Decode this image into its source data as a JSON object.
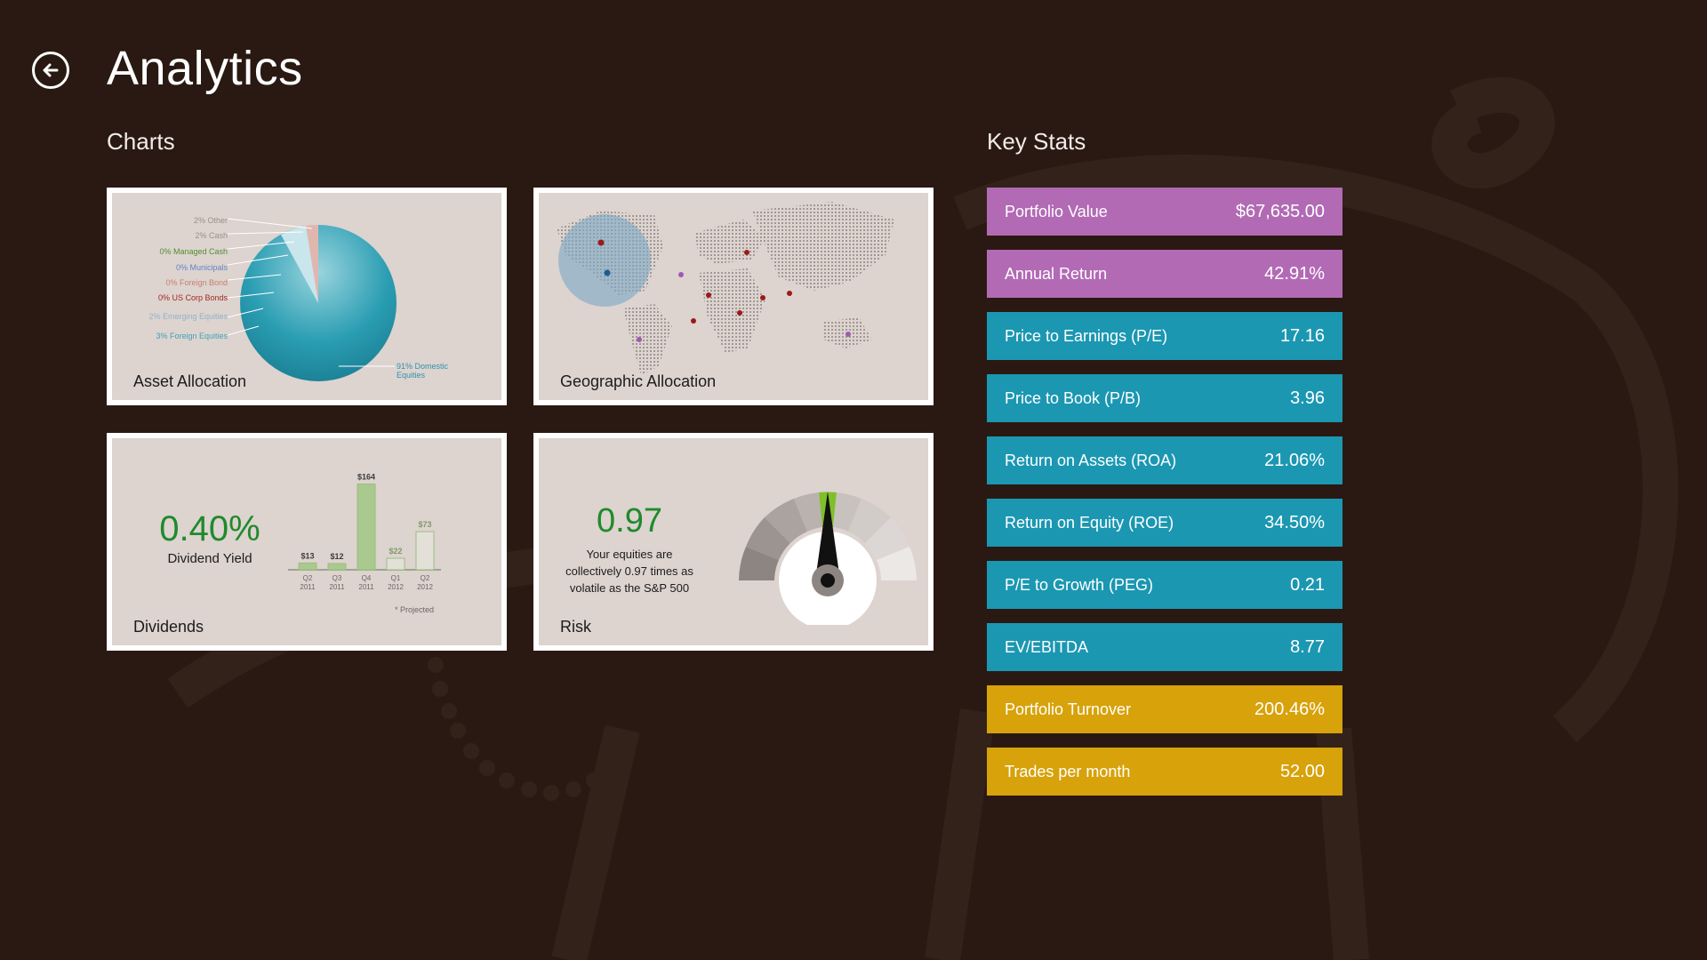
{
  "header": {
    "title": "Analytics"
  },
  "sections": {
    "charts": "Charts",
    "key_stats": "Key Stats"
  },
  "tiles": {
    "asset_allocation": {
      "label": "Asset Allocation",
      "legend": [
        "2% Other",
        "2% Cash",
        "0% Managed Cash",
        "0% Municipals",
        "0% Foreign Bond",
        "0% US Corp Bonds",
        "2% Emerging Equities",
        "3% Foreign Equities",
        "91% Domestic Equities"
      ]
    },
    "geographic_allocation": {
      "label": "Geographic Allocation"
    },
    "dividends": {
      "label": "Dividends",
      "yield_value": "0.40%",
      "yield_label": "Dividend Yield",
      "projected_note": "* Projected"
    },
    "risk": {
      "label": "Risk",
      "value": "0.97",
      "description": "Your equities are collectively 0.97 times as volatile as the S&P 500"
    }
  },
  "chart_data": {
    "type": "bar",
    "categories": [
      "Q2 2011",
      "Q3 2011",
      "Q4 2011",
      "Q1 2012",
      "Q2 2012"
    ],
    "values": [
      13,
      12,
      164,
      22,
      73
    ],
    "value_labels": [
      "$13",
      "$12",
      "$164",
      "$22",
      "$73"
    ],
    "projected": [
      false,
      false,
      false,
      true,
      true
    ],
    "xlabel": "",
    "ylabel": "",
    "ylim": [
      0,
      170
    ]
  },
  "stats": [
    {
      "label": "Portfolio Value",
      "value": "$67,635.00",
      "color": "#b26ab5"
    },
    {
      "label": "Annual Return",
      "value": "42.91%",
      "color": "#b26ab5"
    },
    {
      "label": "Price to Earnings (P/E)",
      "value": "17.16",
      "color": "#1b97b2"
    },
    {
      "label": "Price to Book (P/B)",
      "value": "3.96",
      "color": "#1b97b2"
    },
    {
      "label": "Return on Assets (ROA)",
      "value": "21.06%",
      "color": "#1b97b2"
    },
    {
      "label": "Return on Equity (ROE)",
      "value": "34.50%",
      "color": "#1b97b2"
    },
    {
      "label": "P/E to Growth (PEG)",
      "value": "0.21",
      "color": "#1b97b2"
    },
    {
      "label": "EV/EBITDA",
      "value": "8.77",
      "color": "#1b97b2"
    },
    {
      "label": "Portfolio Turnover",
      "value": "200.46%",
      "color": "#d7a20a"
    },
    {
      "label": "Trades per month",
      "value": "52.00",
      "color": "#d7a20a"
    }
  ]
}
